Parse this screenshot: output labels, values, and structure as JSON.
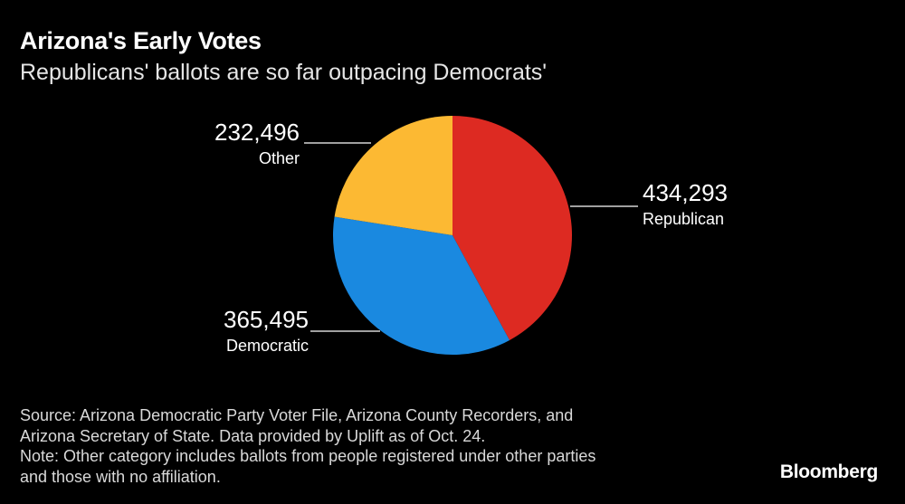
{
  "header": {
    "title": "Arizona's Early Votes",
    "subtitle": "Republicans' ballots are so far outpacing Democrats'"
  },
  "chart_data": {
    "type": "pie",
    "slices": [
      {
        "label": "Republican",
        "value": 434293,
        "value_label": "434,293",
        "color": "#dd2a22"
      },
      {
        "label": "Democratic",
        "value": 365495,
        "value_label": "365,495",
        "color": "#1a89e0"
      },
      {
        "label": "Other",
        "value": 232496,
        "value_label": "232,496",
        "color": "#fcb933"
      }
    ],
    "start": "12 o'clock",
    "direction": "clockwise"
  },
  "footer": {
    "lines": [
      "Source: Arizona Democratic Party Voter File, Arizona County Recorders, and",
      "Arizona Secretary of State. Data provided by Uplift as of Oct. 24.",
      "Note: Other category includes ballots from people registered under other parties",
      "and those with no affiliation."
    ]
  },
  "brand": "Bloomberg"
}
